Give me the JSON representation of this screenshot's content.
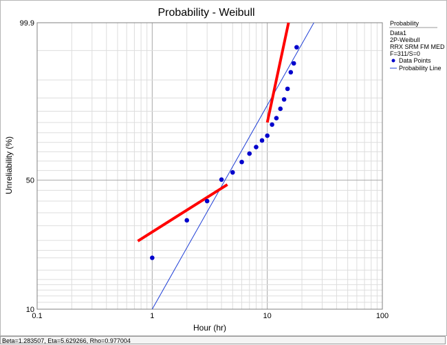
{
  "chart_data": {
    "type": "scatter",
    "title": "Probability - Weibull",
    "xlabel": "Hour (hr)",
    "ylabel": "Unreliability (%)",
    "x_scale": "log",
    "y_scale": "weibull",
    "xlim": [
      0.1,
      100
    ],
    "ylim": [
      10,
      99.9
    ],
    "x_ticks": [
      "0.1",
      "1",
      "10",
      "100"
    ],
    "y_ticks": [
      "10",
      "50",
      "99.9"
    ],
    "grid": true,
    "legend_position": "right",
    "series": [
      {
        "name": "Data Points",
        "kind": "points",
        "color": "#0000cc",
        "points": [
          {
            "x": 1,
            "y": 20.0
          },
          {
            "x": 2,
            "y": 32.0
          },
          {
            "x": 3,
            "y": 40.0
          },
          {
            "x": 4,
            "y": 50.3
          },
          {
            "x": 5,
            "y": 54.0
          },
          {
            "x": 6,
            "y": 59.5
          },
          {
            "x": 7,
            "y": 64.0
          },
          {
            "x": 8,
            "y": 67.5
          },
          {
            "x": 9,
            "y": 71.0
          },
          {
            "x": 10,
            "y": 73.5
          },
          {
            "x": 11,
            "y": 79.0
          },
          {
            "x": 12,
            "y": 82.0
          },
          {
            "x": 13,
            "y": 86.0
          },
          {
            "x": 14,
            "y": 89.5
          },
          {
            "x": 15,
            "y": 92.8
          },
          {
            "x": 16,
            "y": 96.5
          },
          {
            "x": 17,
            "y": 97.8
          },
          {
            "x": 18,
            "y": 99.2
          }
        ]
      },
      {
        "name": "Probability Line",
        "kind": "line",
        "color": "#1f3fd6",
        "points": [
          {
            "x": 1,
            "y": 10
          },
          {
            "x": 25.4,
            "y": 99.9
          }
        ]
      },
      {
        "name": "",
        "kind": "line",
        "color": "#ff0000",
        "points": [
          {
            "x": 0.75,
            "y": 24.8
          },
          {
            "x": 4.5,
            "y": 47.8
          }
        ]
      },
      {
        "name": "",
        "kind": "line",
        "color": "#ff0000",
        "points": [
          {
            "x": 10,
            "y": 80.0
          },
          {
            "x": 15.3,
            "y": 99.9
          }
        ]
      }
    ]
  },
  "legend": {
    "heading": "Probability",
    "dataset": "Data1",
    "model": "2P-Weibull",
    "method": "RRX SRM FM MED",
    "counts": "F=311/S=0",
    "points_label": "Data Points",
    "line_label": "Probability Line",
    "points_color": "#0000cc",
    "line_color": "#1f3fd6"
  },
  "status_text": "Beta=1.283507, Eta=5.629266, Rho=0.977004"
}
